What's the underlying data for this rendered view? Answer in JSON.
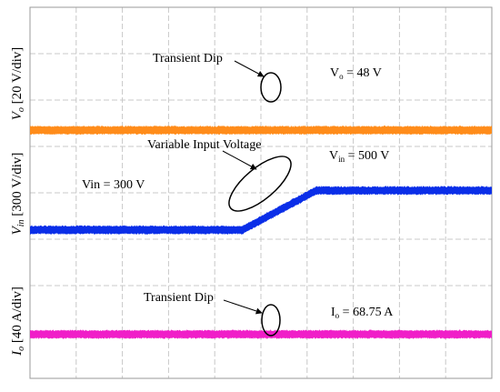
{
  "chart_data": {
    "type": "line",
    "title": "",
    "grid": true,
    "grid_divisions": {
      "x": 10,
      "y": 8
    },
    "colors": {
      "vo": "#ff8c1a",
      "vin": "#0a2ee8",
      "io": "#f01ec8",
      "grid": "#c8c8c8"
    },
    "x_divisions": [
      0,
      10
    ],
    "series": [
      {
        "key": "vo",
        "color": "#ff8c1a",
        "ylabel": {
          "sym": "V",
          "sub": "o",
          "unit": " [20 V/div]"
        },
        "level_div": 5.35,
        "x": [
          0,
          10
        ],
        "y": [
          5.35,
          5.35
        ]
      },
      {
        "key": "vin",
        "color": "#0a2ee8",
        "ylabel": {
          "sym": "V",
          "sub": "in",
          "unit": " [300 V/div]"
        },
        "level_div": 3.2,
        "x": [
          0,
          4.6,
          6.2,
          10
        ],
        "y": [
          3.2,
          3.2,
          4.05,
          4.05
        ]
      },
      {
        "key": "io",
        "color": "#f01ec8",
        "ylabel": {
          "sym": "I",
          "sub": "o",
          "unit": " [40 A/div]"
        },
        "level_div": 0.95,
        "x": [
          0,
          10
        ],
        "y": [
          0.95,
          0.95
        ]
      }
    ],
    "annotations": {
      "vo_value": {
        "pre": "V",
        "sub": "o",
        "post": " = 48 V"
      },
      "vin_left": "Vin = 300 V",
      "vin_right": {
        "pre": "V",
        "sub": "in",
        "post": " = 500 V"
      },
      "io_value": {
        "pre": "I",
        "sub": "o",
        "post": " = 68.75 A"
      },
      "dip_top": "Transient Dip",
      "variable_input": "Variable Input Voltage",
      "dip_bottom": "Transient Dip"
    }
  }
}
